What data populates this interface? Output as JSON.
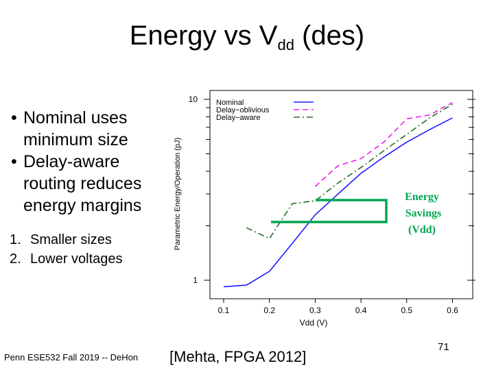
{
  "slide": {
    "title_main": "Energy vs V",
    "title_sub": "dd",
    "title_end": " (des)",
    "bullets": [
      "Nominal uses minimum size",
      "Delay-aware routing reduces energy margins"
    ],
    "subitems": [
      {
        "num": "1.",
        "text": "Smaller sizes"
      },
      {
        "num": "2.",
        "text": "Lower voltages"
      }
    ],
    "footer_left": "Penn ESE532 Fall 2019 -- DeHon",
    "citation": "[Mehta,  FPGA 2012]",
    "page_number": "71"
  },
  "icons": {
    "bullet": "•"
  },
  "chart_data": {
    "type": "line",
    "xlabel": "Vdd (V)",
    "ylabel": "Parametric Energy/Operation (pJ)",
    "x_ticks": [
      "0.1",
      "0.2",
      "0.3",
      "0.4",
      "0.5",
      "0.6"
    ],
    "y_tick_labels": [
      "10",
      "1"
    ],
    "y_scale": "log",
    "xlim": [
      0.05,
      0.63
    ],
    "ylim": [
      0.8,
      11
    ],
    "legend_position": "top-left",
    "series": [
      {
        "name": "Nominal",
        "color": "#1a1aff",
        "dash": "solid",
        "x": [
          0.1,
          0.15,
          0.2,
          0.25,
          0.3,
          0.35,
          0.4,
          0.45,
          0.5,
          0.55,
          0.6
        ],
        "y": [
          0.92,
          0.94,
          1.12,
          1.6,
          2.3,
          3.0,
          3.9,
          4.8,
          5.8,
          6.8,
          7.9
        ]
      },
      {
        "name": "Delay−oblivious",
        "color": "#e61ee6",
        "dash": "dashed",
        "x": [
          0.3,
          0.35,
          0.4,
          0.45,
          0.5,
          0.55,
          0.6
        ],
        "y": [
          3.3,
          4.3,
          4.7,
          5.8,
          7.8,
          8.2,
          9.6
        ]
      },
      {
        "name": "Delay−aware",
        "color": "#1f6f1f",
        "dash": "dashdot",
        "x": [
          0.15,
          0.2,
          0.25,
          0.3,
          0.35,
          0.4,
          0.45,
          0.5,
          0.55,
          0.6
        ],
        "y": [
          1.95,
          1.7,
          2.65,
          2.75,
          3.45,
          4.2,
          5.2,
          6.4,
          7.9,
          9.4
        ]
      }
    ],
    "annotation": {
      "lines": [
        "Energy",
        "Savings",
        "(Vdd)"
      ],
      "color": "#00a651"
    }
  }
}
